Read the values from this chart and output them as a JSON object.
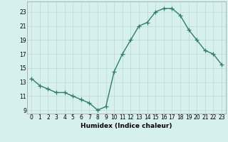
{
  "x": [
    0,
    1,
    2,
    3,
    4,
    5,
    6,
    7,
    8,
    9,
    10,
    11,
    12,
    13,
    14,
    15,
    16,
    17,
    18,
    19,
    20,
    21,
    22,
    23
  ],
  "y": [
    13.5,
    12.5,
    12.0,
    11.5,
    11.5,
    11.0,
    10.5,
    10.0,
    9.0,
    9.5,
    14.5,
    17.0,
    19.0,
    21.0,
    21.5,
    23.0,
    23.5,
    23.5,
    22.5,
    20.5,
    19.0,
    17.5,
    17.0,
    15.5
  ],
  "line_color": "#2e7d6e",
  "marker": "+",
  "marker_size": 4,
  "xlabel": "Humidex (Indice chaleur)",
  "ylabel": "",
  "title": "",
  "xlim": [
    -0.5,
    23.5
  ],
  "ylim": [
    8.5,
    24.5
  ],
  "yticks": [
    9,
    11,
    13,
    15,
    17,
    19,
    21,
    23
  ],
  "xticks": [
    0,
    1,
    2,
    3,
    4,
    5,
    6,
    7,
    8,
    9,
    10,
    11,
    12,
    13,
    14,
    15,
    16,
    17,
    18,
    19,
    20,
    21,
    22,
    23
  ],
  "bg_color": "#d6f0ee",
  "grid_color": "#c0dbd8",
  "tick_label_fontsize": 5.5,
  "xlabel_fontsize": 6.5,
  "line_width": 1.0
}
